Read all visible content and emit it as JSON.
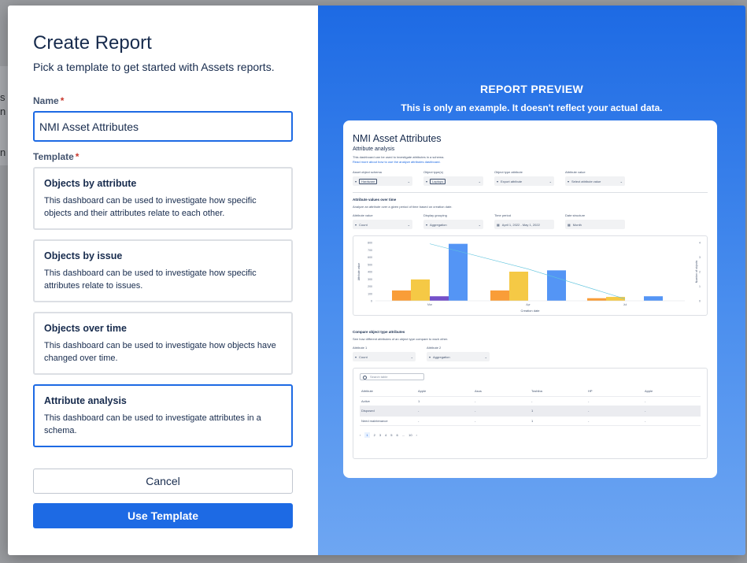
{
  "backdrop": {
    "fragments": [
      "s",
      "n v",
      "n f"
    ]
  },
  "dialog": {
    "title": "Create Report",
    "subtitle": "Pick a template to get started with Assets reports.",
    "name_label": "Name",
    "required_mark": "*",
    "name_value": "NMI Asset Attributes",
    "template_label": "Template",
    "templates": [
      {
        "title": "Objects by attribute",
        "description": "This dashboard can be used to investigate how specific objects and their attributes relate to each other."
      },
      {
        "title": "Objects by issue",
        "description": "This dashboard can be used to investigate how specific attributes relate to issues."
      },
      {
        "title": "Objects over time",
        "description": "This dashboard can be used to investigate how objects have changed over time."
      },
      {
        "title": "Attribute analysis",
        "description": "This dashboard can be used to investigate attributes in a schema."
      }
    ],
    "selected_template": 3,
    "cancel_label": "Cancel",
    "use_label": "Use Template"
  },
  "preview": {
    "heading": "REPORT PREVIEW",
    "note": "This is only an example. It doesn't reflect your actual data.",
    "title": "NMI Asset Attributes",
    "section1": {
      "heading": "Attribute analysis",
      "desc": "This dashboard can be used to investigate attributes in a schema.",
      "link": "Read more about how to use the analyze attributes dashboard."
    },
    "filters1": [
      {
        "label": "Asset object schema",
        "value": "Hardware",
        "chip": true
      },
      {
        "label": "Object type(s)",
        "value": "Laptops",
        "chip": true
      },
      {
        "label": "Object type attribute",
        "value": "Export attribute",
        "chip": false
      },
      {
        "label": "Attribute value",
        "value": "Select attribute value",
        "chip": false
      }
    ],
    "section2": {
      "heading": "Attribute values over time",
      "desc": "Analyze an attribute over a given period of time based on creation date."
    },
    "filters2": [
      {
        "label": "Attribute value",
        "value": "Count",
        "icon": "filter"
      },
      {
        "label": "Display grouping",
        "value": "Aggregation",
        "icon": "filter"
      },
      {
        "label": "Time period",
        "value": "April 1, 2022 - May 1, 2022",
        "icon": "calendar"
      },
      {
        "label": "Date structure",
        "value": "Month",
        "icon": "calendar"
      }
    ],
    "chart": {
      "yticks": [
        "800",
        "700",
        "600",
        "500",
        "400",
        "300",
        "200",
        "100",
        "0"
      ],
      "y2ticks": [
        "4",
        "3",
        "2",
        "1",
        "0"
      ],
      "ylabel": "Attribute value",
      "y2label": "Number of objects",
      "xlabel": "Creation date",
      "xticks": [
        "Mar",
        "Apr",
        "Jul"
      ]
    },
    "chart_data": {
      "type": "bar",
      "categories": [
        "Mar",
        "Apr",
        "Jul"
      ],
      "series": [
        {
          "values": [
            160,
            160,
            40
          ],
          "color": "#f99d38"
        },
        {
          "values": [
            330,
            450,
            60
          ],
          "color": "#f5c945"
        },
        {
          "values": [
            70,
            0,
            0
          ],
          "color": "#7450c9"
        },
        {
          "values": [
            880,
            470,
            70
          ],
          "color": "#5495f5"
        }
      ],
      "line": {
        "values": [
          880,
          490,
          30
        ],
        "color": "#5ec3dd"
      },
      "ylim": [
        0,
        900
      ],
      "xlabel": "Creation date",
      "ylabel": "Attribute value",
      "y2label": "Number of objects"
    },
    "section3": {
      "heading": "Compare object type attributes",
      "desc": "See how different attributes of an object type compare to each other."
    },
    "filters3": [
      {
        "label": "Attribute 1",
        "value": "Count"
      },
      {
        "label": "Attribute 2",
        "value": "Aggregation"
      }
    ],
    "table": {
      "search_placeholder": "Search table",
      "headers": [
        "Attribute",
        "Apple",
        "Asus",
        "Toshiba",
        "HP",
        "Apple"
      ],
      "rows": [
        [
          "Active",
          "1",
          "-",
          "-",
          "-",
          "-"
        ],
        [
          "Disposed",
          "-",
          "-",
          "1",
          "-",
          "-"
        ],
        [
          "Need maintenance",
          "-",
          "-",
          "1",
          "-",
          "-"
        ]
      ]
    },
    "pagination": [
      "‹",
      "1",
      "2",
      "3",
      "4",
      "5",
      "6",
      "...",
      "10",
      "›"
    ]
  }
}
